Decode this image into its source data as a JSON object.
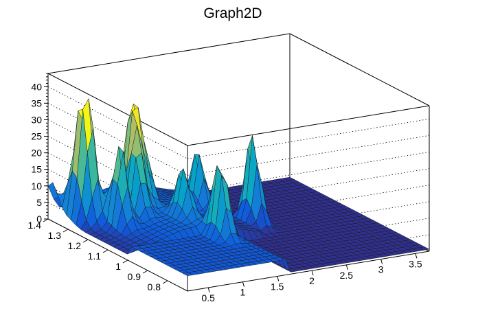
{
  "chart_data": {
    "type": "surface",
    "title": "Graph2D",
    "xlabel": "",
    "ylabel": "",
    "zlabel": "",
    "x_range": [
      0.2,
      3.7
    ],
    "y_range": [
      0.7,
      1.4
    ],
    "z_range": [
      0,
      44
    ],
    "x_ticks": [
      0.5,
      1,
      1.5,
      2,
      2.5,
      3,
      3.5
    ],
    "x_tick_labels": [
      "0.5",
      "1",
      "1.5",
      "2",
      "2.5",
      "3",
      "3.5"
    ],
    "y_ticks": [
      0.8,
      0.9,
      1,
      1.1,
      1.2,
      1.3,
      1.4
    ],
    "y_tick_labels": [
      "0.8",
      "0.9",
      "1",
      "1.1",
      "1.2",
      "1.3",
      "1.4"
    ],
    "z_ticks": [
      0,
      5,
      10,
      15,
      20,
      25,
      30,
      35,
      40
    ],
    "z_tick_labels": [
      "0",
      "5",
      "10",
      "15",
      "20",
      "25",
      "30",
      "35",
      "40"
    ],
    "grid": true,
    "colormap": "viridis-like",
    "colors": {
      "low": "#352a87",
      "mid": "#1ea8c6",
      "high": "#f9e14a"
    },
    "peaks": [
      {
        "x": 0.45,
        "y": 1.28,
        "z": 30
      },
      {
        "x": 0.35,
        "y": 1.3,
        "z": 25
      },
      {
        "x": 0.6,
        "y": 1.18,
        "z": 25
      },
      {
        "x": 1.0,
        "y": 1.25,
        "z": 32
      },
      {
        "x": 0.9,
        "y": 1.2,
        "z": 20
      },
      {
        "x": 1.15,
        "y": 1.25,
        "z": 17
      },
      {
        "x": 1.4,
        "y": 0.95,
        "z": 25
      },
      {
        "x": 1.8,
        "y": 1.2,
        "z": 18
      },
      {
        "x": 2.3,
        "y": 1.1,
        "z": 28
      },
      {
        "x": 1.3,
        "y": 1.1,
        "z": 15
      },
      {
        "x": 0.2,
        "y": 1.38,
        "z": 10
      }
    ]
  }
}
